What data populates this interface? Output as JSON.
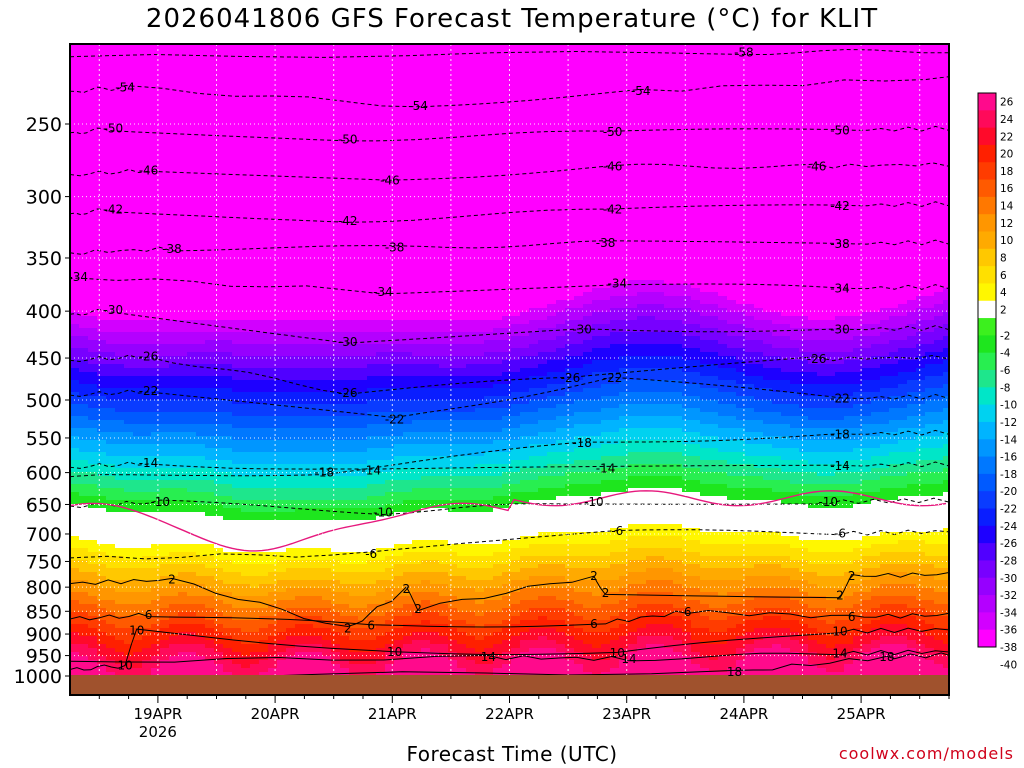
{
  "header": {
    "title": "2026041806 GFS Forecast Temperature (°C) for KLIT"
  },
  "footer": {
    "xlabel": "Forecast Time (UTC)",
    "credit": "coolwx.com/models"
  },
  "chart_data": {
    "type": "heatmap",
    "title": "2026041806 GFS Forecast Temperature (°C) for KLIT",
    "xlabel": "Forecast Time (UTC)",
    "ylabel": "",
    "y_axis": {
      "scale": "log-pressure",
      "inverted": true,
      "range": [
        1000,
        200
      ],
      "ticks": [
        250,
        300,
        350,
        400,
        450,
        500,
        550,
        600,
        650,
        700,
        750,
        800,
        850,
        900,
        950,
        1000
      ]
    },
    "x_axis": {
      "range_days": [
        "2026-04-18 06Z",
        "2026-04-25 18Z"
      ],
      "ticks": [
        {
          "label": "19APR",
          "sub": "2026",
          "day": 19
        },
        {
          "label": "20APR",
          "sub": "",
          "day": 20
        },
        {
          "label": "21APR",
          "sub": "",
          "day": 21
        },
        {
          "label": "22APR",
          "sub": "",
          "day": 22
        },
        {
          "label": "23APR",
          "sub": "",
          "day": 23
        },
        {
          "label": "24APR",
          "sub": "",
          "day": 24
        },
        {
          "label": "25APR",
          "sub": "",
          "day": 25
        }
      ]
    },
    "grid": true,
    "colorbar": {
      "labels": [
        26,
        24,
        22,
        20,
        18,
        16,
        14,
        12,
        10,
        8,
        6,
        4,
        2,
        -2,
        -4,
        -6,
        -8,
        -10,
        -12,
        -14,
        -16,
        -18,
        -20,
        -22,
        -24,
        -26,
        -28,
        -30,
        -32,
        -34,
        -36,
        -38,
        -40
      ],
      "colors": [
        "#ff0a8c",
        "#ff0a5a",
        "#ff0a2a",
        "#ff2000",
        "#ff3c00",
        "#ff5a00",
        "#ff7800",
        "#ff9600",
        "#ffaa00",
        "#ffc800",
        "#ffe000",
        "#fff700",
        "#ffffff",
        "#3cf01e",
        "#1ee61e",
        "#28ee50",
        "#1ee68c",
        "#00e6c8",
        "#00d2f0",
        "#00b4ff",
        "#0096ff",
        "#0078ff",
        "#005aff",
        "#0a3cff",
        "#0a1eff",
        "#1e00ff",
        "#5000ff",
        "#7800ff",
        "#9600ff",
        "#b400ff",
        "#d200ff",
        "#ff00ff"
      ]
    },
    "freezing_line_color": "#e6197d",
    "contour_labels": [
      {
        "v": "-58",
        "day": 24.0,
        "p": 209
      },
      {
        "v": "-54",
        "day": 18.72,
        "p": 228
      },
      {
        "v": "-54",
        "day": 21.22,
        "p": 239
      },
      {
        "v": "-54",
        "day": 23.12,
        "p": 230
      },
      {
        "v": "-54",
        "day": 25.9,
        "p": 222
      },
      {
        "v": "-50",
        "day": 18.62,
        "p": 253
      },
      {
        "v": "-50",
        "day": 20.62,
        "p": 260
      },
      {
        "v": "-50",
        "day": 22.88,
        "p": 255
      },
      {
        "v": "-50",
        "day": 24.82,
        "p": 254
      },
      {
        "v": "-46",
        "day": 18.92,
        "p": 281
      },
      {
        "v": "-46",
        "day": 20.98,
        "p": 288
      },
      {
        "v": "-46",
        "day": 22.88,
        "p": 278
      },
      {
        "v": "-46",
        "day": 24.62,
        "p": 278
      },
      {
        "v": "-42",
        "day": 18.62,
        "p": 310
      },
      {
        "v": "-42",
        "day": 20.62,
        "p": 319
      },
      {
        "v": "-42",
        "day": 22.88,
        "p": 310
      },
      {
        "v": "-42",
        "day": 24.82,
        "p": 307
      },
      {
        "v": "-38",
        "day": 19.12,
        "p": 342
      },
      {
        "v": "-38",
        "day": 21.02,
        "p": 341
      },
      {
        "v": "-38",
        "day": 22.82,
        "p": 337
      },
      {
        "v": "-38",
        "day": 24.82,
        "p": 338
      },
      {
        "v": "-34",
        "day": 18.32,
        "p": 367
      },
      {
        "v": "-34",
        "day": 20.92,
        "p": 381
      },
      {
        "v": "-34",
        "day": 22.92,
        "p": 373
      },
      {
        "v": "-34",
        "day": 24.82,
        "p": 378
      },
      {
        "v": "-30",
        "day": 18.62,
        "p": 399
      },
      {
        "v": "-30",
        "day": 20.62,
        "p": 432
      },
      {
        "v": "-30",
        "day": 22.62,
        "p": 419
      },
      {
        "v": "-30",
        "day": 24.82,
        "p": 419
      },
      {
        "v": "-26",
        "day": 18.92,
        "p": 448
      },
      {
        "v": "-26",
        "day": 20.62,
        "p": 491
      },
      {
        "v": "-26",
        "day": 22.52,
        "p": 473
      },
      {
        "v": "-26",
        "day": 24.62,
        "p": 451
      },
      {
        "v": "-22",
        "day": 18.92,
        "p": 489
      },
      {
        "v": "-22",
        "day": 21.02,
        "p": 525
      },
      {
        "v": "-22",
        "day": 22.88,
        "p": 473
      },
      {
        "v": "-22",
        "day": 24.82,
        "p": 498
      },
      {
        "v": "-18",
        "day": 20.42,
        "p": 600
      },
      {
        "v": "-18",
        "day": 22.62,
        "p": 557
      },
      {
        "v": "-18",
        "day": 24.82,
        "p": 545
      },
      {
        "v": "-14",
        "day": 18.92,
        "p": 586
      },
      {
        "v": "-14",
        "day": 20.82,
        "p": 597
      },
      {
        "v": "-14",
        "day": 22.82,
        "p": 594
      },
      {
        "v": "-14",
        "day": 24.82,
        "p": 590
      },
      {
        "v": "-10",
        "day": 19.02,
        "p": 646
      },
      {
        "v": "-10",
        "day": 20.92,
        "p": 663
      },
      {
        "v": "-10",
        "day": 22.72,
        "p": 646
      },
      {
        "v": "-10",
        "day": 24.72,
        "p": 646
      },
      {
        "v": "-6",
        "day": 20.82,
        "p": 736
      },
      {
        "v": "-6",
        "day": 22.92,
        "p": 695
      },
      {
        "v": "-6",
        "day": 24.82,
        "p": 699
      },
      {
        "v": "2",
        "day": 19.12,
        "p": 785
      },
      {
        "v": "2",
        "day": 21.12,
        "p": 804
      },
      {
        "v": "2",
        "day": 22.72,
        "p": 778
      },
      {
        "v": "2",
        "day": 24.92,
        "p": 778
      },
      {
        "v": "2",
        "day": 20.62,
        "p": 888
      },
      {
        "v": "2",
        "day": 22.82,
        "p": 812
      },
      {
        "v": "2",
        "day": 24.82,
        "p": 817
      },
      {
        "v": "2",
        "day": 21.22,
        "p": 845
      },
      {
        "v": "6",
        "day": 18.92,
        "p": 858
      },
      {
        "v": "6",
        "day": 20.82,
        "p": 881
      },
      {
        "v": "6",
        "day": 22.72,
        "p": 878
      },
      {
        "v": "6",
        "day": 23.52,
        "p": 851
      },
      {
        "v": "6",
        "day": 24.92,
        "p": 862
      },
      {
        "v": "10",
        "day": 18.82,
        "p": 892
      },
      {
        "v": "10",
        "day": 21.02,
        "p": 941
      },
      {
        "v": "10",
        "day": 22.92,
        "p": 944
      },
      {
        "v": "10",
        "day": 24.82,
        "p": 894
      },
      {
        "v": "10",
        "day": 18.72,
        "p": 974
      },
      {
        "v": "14",
        "day": 21.82,
        "p": 954
      },
      {
        "v": "14",
        "day": 23.02,
        "p": 958
      },
      {
        "v": "14",
        "day": 24.82,
        "p": 945
      },
      {
        "v": "18",
        "day": 25.22,
        "p": 953
      },
      {
        "v": "18",
        "day": 23.92,
        "p": 990
      }
    ]
  }
}
